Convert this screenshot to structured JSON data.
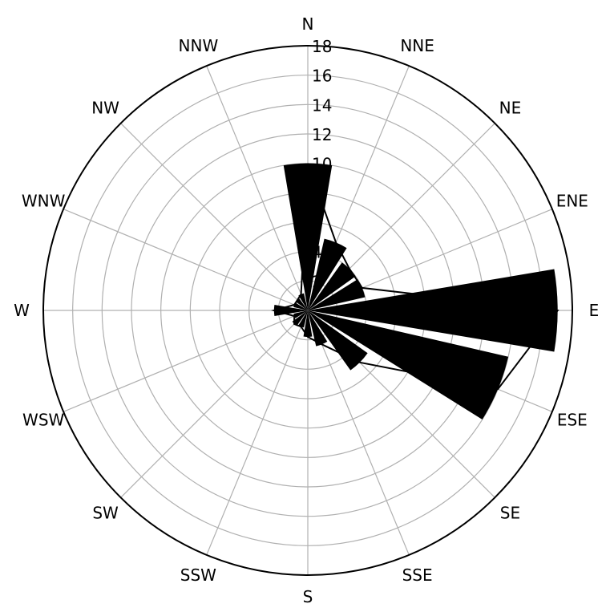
{
  "chart_data": {
    "type": "polar-area",
    "directions": [
      "N",
      "NNE",
      "NE",
      "ENE",
      "E",
      "ESE",
      "SE",
      "SSE",
      "S",
      "SSW",
      "SW",
      "WSW",
      "W",
      "WNW",
      "NW",
      "NNW"
    ],
    "values": [
      10,
      5,
      4,
      4,
      17,
      14,
      5,
      2.5,
      1.8,
      1.2,
      1.3,
      1.0,
      2.3,
      1.0,
      1.0,
      1.2
    ],
    "rticks": [
      "2",
      "4",
      "6",
      "8",
      "10",
      "12",
      "14",
      "16",
      "18"
    ],
    "rmax": 18,
    "grid": true,
    "colors": {
      "fill": "#000000",
      "outline": "#000000",
      "grid": "#b0b0b0"
    }
  }
}
